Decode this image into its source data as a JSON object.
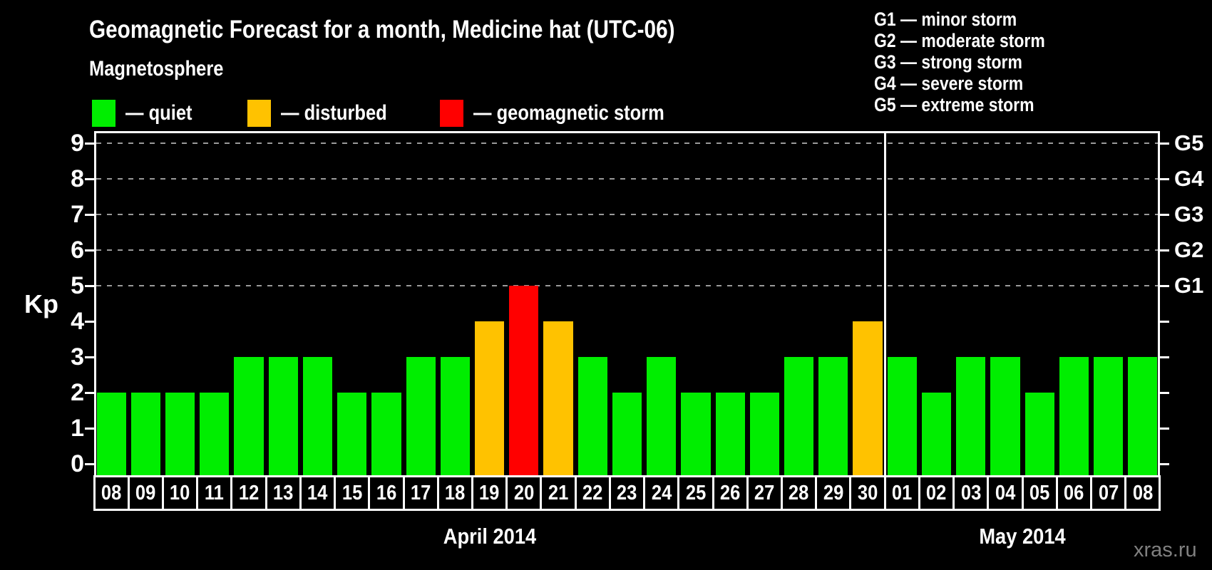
{
  "header": {
    "title": "Geomagnetic Forecast for a month, Medicine hat (UTC-06)",
    "subtitle": "Magnetosphere"
  },
  "magnetosphere_legend": [
    {
      "label": "— quiet",
      "status": "quiet"
    },
    {
      "label": "— disturbed",
      "status": "disturbed"
    },
    {
      "label": "— geomagnetic storm",
      "status": "storm"
    }
  ],
  "g_scale_legend": [
    "G1 — minor storm",
    "G2 — moderate storm",
    "G3 — strong storm",
    "G4 — severe storm",
    "G5 — extreme storm"
  ],
  "colors": {
    "background": "#000000",
    "quiet": "#00ee00",
    "disturbed": "#ffc200",
    "storm": "#ff0000",
    "grid": "#9a9a9a",
    "frame": "#ffffff",
    "watermark": "#808080"
  },
  "watermark": "xras.ru",
  "chart_data": {
    "type": "bar",
    "title": "Geomagnetic Forecast for a month, Medicine hat (UTC-06)",
    "ylabel": "Kp",
    "ylim": [
      0,
      9.35
    ],
    "y_ticks": [
      0,
      1,
      2,
      3,
      4,
      5,
      6,
      7,
      8,
      9
    ],
    "gridlines_at": [
      5,
      6,
      7,
      8,
      9
    ],
    "grid": "dashed horizontal at G-storm levels only",
    "legend_position": "top",
    "right_axis_labels": [
      {
        "kp": 5,
        "label": "G1"
      },
      {
        "kp": 6,
        "label": "G2"
      },
      {
        "kp": 7,
        "label": "G3"
      },
      {
        "kp": 8,
        "label": "G4"
      },
      {
        "kp": 9,
        "label": "G5"
      }
    ],
    "months": [
      {
        "label": "April 2014",
        "days": 23
      },
      {
        "label": "May 2014",
        "days": 8
      }
    ],
    "points": [
      {
        "month": "April",
        "day": "08",
        "kp": 2,
        "status": "quiet"
      },
      {
        "month": "April",
        "day": "09",
        "kp": 2,
        "status": "quiet"
      },
      {
        "month": "April",
        "day": "10",
        "kp": 2,
        "status": "quiet"
      },
      {
        "month": "April",
        "day": "11",
        "kp": 2,
        "status": "quiet"
      },
      {
        "month": "April",
        "day": "12",
        "kp": 3,
        "status": "quiet"
      },
      {
        "month": "April",
        "day": "13",
        "kp": 3,
        "status": "quiet"
      },
      {
        "month": "April",
        "day": "14",
        "kp": 3,
        "status": "quiet"
      },
      {
        "month": "April",
        "day": "15",
        "kp": 2,
        "status": "quiet"
      },
      {
        "month": "April",
        "day": "16",
        "kp": 2,
        "status": "quiet"
      },
      {
        "month": "April",
        "day": "17",
        "kp": 3,
        "status": "quiet"
      },
      {
        "month": "April",
        "day": "18",
        "kp": 3,
        "status": "quiet"
      },
      {
        "month": "April",
        "day": "19",
        "kp": 4,
        "status": "disturbed"
      },
      {
        "month": "April",
        "day": "20",
        "kp": 5,
        "status": "storm"
      },
      {
        "month": "April",
        "day": "21",
        "kp": 4,
        "status": "disturbed"
      },
      {
        "month": "April",
        "day": "22",
        "kp": 3,
        "status": "quiet"
      },
      {
        "month": "April",
        "day": "23",
        "kp": 2,
        "status": "quiet"
      },
      {
        "month": "April",
        "day": "24",
        "kp": 3,
        "status": "quiet"
      },
      {
        "month": "April",
        "day": "25",
        "kp": 2,
        "status": "quiet"
      },
      {
        "month": "April",
        "day": "26",
        "kp": 2,
        "status": "quiet"
      },
      {
        "month": "April",
        "day": "27",
        "kp": 2,
        "status": "quiet"
      },
      {
        "month": "April",
        "day": "28",
        "kp": 3,
        "status": "quiet"
      },
      {
        "month": "April",
        "day": "29",
        "kp": 3,
        "status": "quiet"
      },
      {
        "month": "April",
        "day": "30",
        "kp": 4,
        "status": "disturbed"
      },
      {
        "month": "May",
        "day": "01",
        "kp": 3,
        "status": "quiet"
      },
      {
        "month": "May",
        "day": "02",
        "kp": 2,
        "status": "quiet"
      },
      {
        "month": "May",
        "day": "03",
        "kp": 3,
        "status": "quiet"
      },
      {
        "month": "May",
        "day": "04",
        "kp": 3,
        "status": "quiet"
      },
      {
        "month": "May",
        "day": "05",
        "kp": 2,
        "status": "quiet"
      },
      {
        "month": "May",
        "day": "06",
        "kp": 3,
        "status": "quiet"
      },
      {
        "month": "May",
        "day": "07",
        "kp": 3,
        "status": "quiet"
      },
      {
        "month": "May",
        "day": "08",
        "kp": 3,
        "status": "quiet"
      }
    ]
  }
}
